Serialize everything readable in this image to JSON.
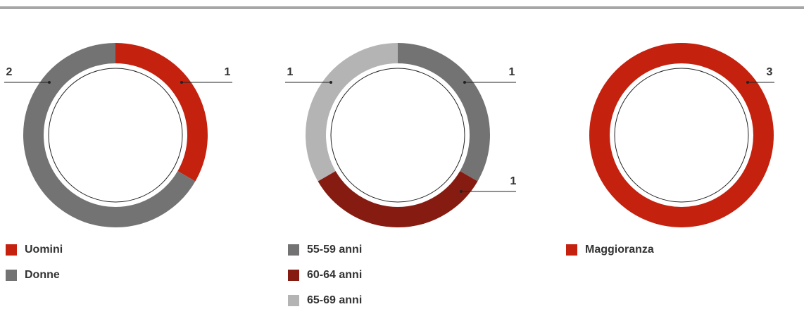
{
  "chart_data": [
    {
      "type": "donut",
      "categories": [
        "Uomini",
        "Donne"
      ],
      "values": [
        1,
        2
      ],
      "colors": [
        "#c4210f",
        "#737373"
      ]
    },
    {
      "type": "donut",
      "categories": [
        "55-59 anni",
        "60-64 anni",
        "65-69 anni"
      ],
      "values": [
        1,
        1,
        1
      ],
      "colors": [
        "#737373",
        "#861b11",
        "#b4b4b4"
      ]
    },
    {
      "type": "donut",
      "categories": [
        "Maggioranza"
      ],
      "values": [
        3
      ],
      "colors": [
        "#c4210f"
      ]
    }
  ]
}
